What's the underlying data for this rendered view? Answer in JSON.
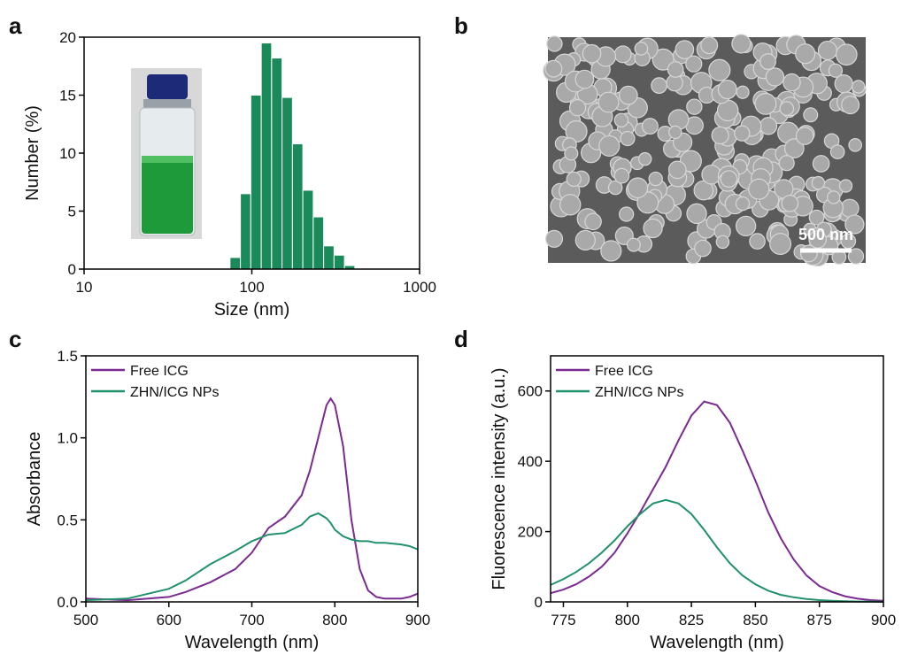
{
  "panel_labels": [
    "a",
    "b",
    "c",
    "d"
  ],
  "sem_image": {
    "scale_bar": "500 nm"
  },
  "chart_data": [
    {
      "type": "histogram",
      "xlabel": "Size (nm)",
      "ylabel": "Number (%)",
      "xscale": "log",
      "color": "#1b8a5a",
      "bins": [
        74.1,
        85.5,
        98.6,
        113.8,
        131.2,
        151.4,
        174.6,
        201.4,
        232.3,
        268.0,
        309.1,
        356.6,
        411.3
      ],
      "values": [
        1.0,
        6.5,
        15.0,
        19.5,
        18.2,
        14.8,
        10.8,
        6.8,
        4.5,
        2.0,
        1.2,
        0.3
      ],
      "xlim": [
        10,
        1000
      ],
      "xticks": [
        10,
        100,
        1000
      ],
      "ylim": [
        0,
        20
      ],
      "yticks": [
        0,
        5,
        10,
        15,
        20
      ]
    },
    {
      "type": "line",
      "xlabel": "Wavelength (nm)",
      "ylabel": "Absorbance",
      "legend": "upper left",
      "x": [
        500,
        550,
        600,
        620,
        650,
        680,
        700,
        720,
        740,
        760,
        770,
        780,
        790,
        795,
        800,
        810,
        820,
        830,
        840,
        850,
        860,
        880,
        890,
        900
      ],
      "series": [
        {
          "name": "Free ICG",
          "color": "#7a2a90",
          "values": [
            0.02,
            0.01,
            0.03,
            0.06,
            0.12,
            0.2,
            0.3,
            0.45,
            0.52,
            0.65,
            0.8,
            1.0,
            1.2,
            1.24,
            1.2,
            0.95,
            0.5,
            0.2,
            0.07,
            0.03,
            0.02,
            0.02,
            0.03,
            0.05
          ]
        },
        {
          "name": "ZHN/ICG NPs",
          "color": "#21916a",
          "values": [
            0.01,
            0.02,
            0.08,
            0.13,
            0.23,
            0.31,
            0.37,
            0.41,
            0.42,
            0.47,
            0.52,
            0.54,
            0.51,
            0.48,
            0.44,
            0.4,
            0.38,
            0.37,
            0.37,
            0.36,
            0.36,
            0.35,
            0.34,
            0.32
          ]
        }
      ],
      "xlim": [
        500,
        900
      ],
      "xticks": [
        500,
        600,
        700,
        800,
        900
      ],
      "ylim": [
        0,
        1.5
      ],
      "yticks": [
        {
          "value": 0,
          "label": "0.0"
        },
        {
          "value": 0.5,
          "label": "0.5"
        },
        {
          "value": 1,
          "label": "1.0"
        },
        {
          "value": 1.5,
          "label": "1.5"
        }
      ]
    },
    {
      "type": "line",
      "xlabel": "Wavelength (nm)",
      "ylabel": "Fluorescence intensity (a.u.)",
      "legend": "upper left",
      "x": [
        770,
        775,
        780,
        785,
        790,
        795,
        800,
        805,
        810,
        815,
        820,
        825,
        830,
        835,
        840,
        845,
        850,
        855,
        860,
        865,
        870,
        875,
        880,
        885,
        890,
        895,
        900
      ],
      "series": [
        {
          "name": "Free ICG",
          "color": "#7a2a90",
          "values": [
            25,
            35,
            50,
            72,
            100,
            140,
            195,
            255,
            320,
            385,
            460,
            530,
            570,
            560,
            510,
            430,
            345,
            255,
            180,
            120,
            75,
            45,
            28,
            16,
            9,
            5,
            3
          ]
        },
        {
          "name": "ZHN/ICG NPs",
          "color": "#21916a",
          "values": [
            48,
            65,
            85,
            110,
            140,
            175,
            215,
            250,
            280,
            290,
            280,
            250,
            205,
            155,
            110,
            75,
            50,
            32,
            20,
            13,
            8,
            5,
            3,
            2,
            1,
            1,
            0
          ]
        }
      ],
      "xlim": [
        770,
        900
      ],
      "xticks": [
        775,
        800,
        825,
        850,
        875,
        900
      ],
      "ylim": [
        0,
        700
      ],
      "yticks": [
        0,
        200,
        400,
        600
      ]
    }
  ]
}
